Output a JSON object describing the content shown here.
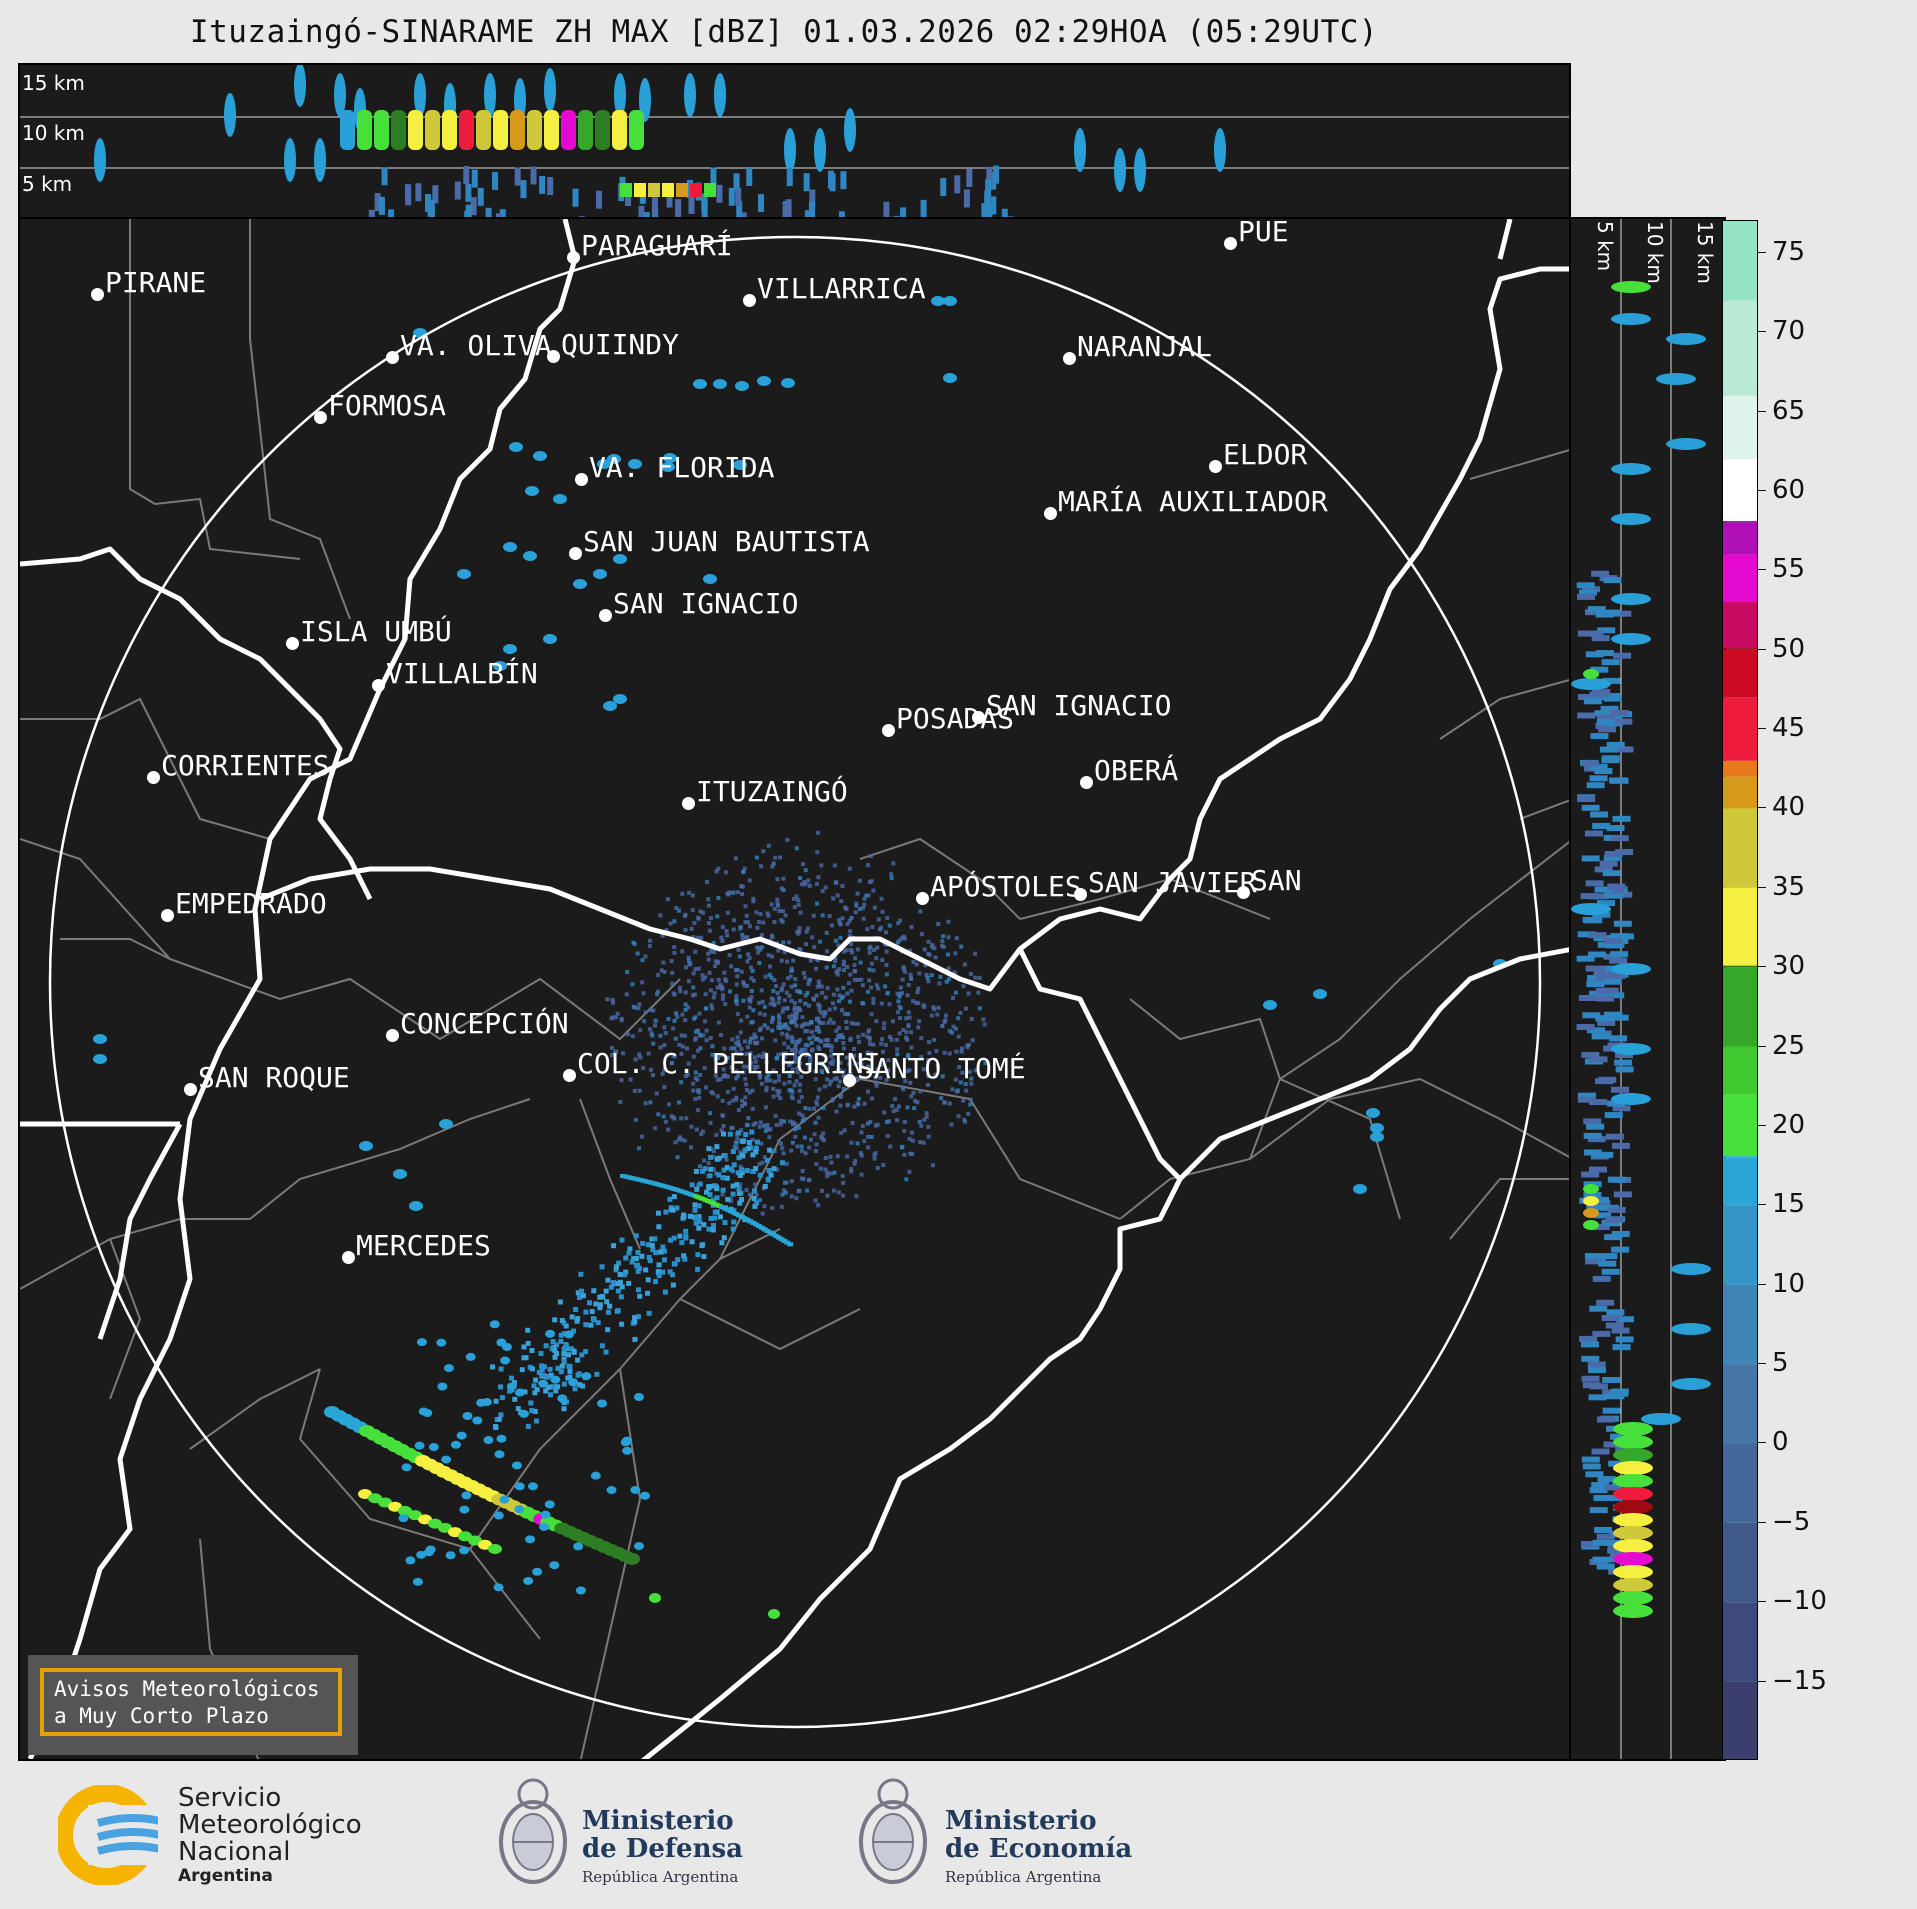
{
  "title": "Ituzaingó-SINARAME ZH MAX [dBZ] 01.03.2026 02:29HOA (05:29UTC)",
  "top_panel": {
    "altitudes": [
      "15 km",
      "10 km",
      "5 km"
    ]
  },
  "side_panel": {
    "altitudes": [
      "5 km",
      "10 km",
      "15 km"
    ]
  },
  "colorbar": {
    "ticks": [
      "75",
      "70",
      "65",
      "60",
      "55",
      "50",
      "45",
      "40",
      "35",
      "30",
      "25",
      "20",
      "15",
      "10",
      "5",
      "0",
      "−5",
      "−10",
      "−15"
    ],
    "range_dbz": [
      -20,
      77
    ]
  },
  "cities": [
    {
      "name": "PIRANE"
    },
    {
      "name": "PARAGUARÍ"
    },
    {
      "name": "VILLARRICA"
    },
    {
      "name": "VA. OLIVA"
    },
    {
      "name": "QUIINDY"
    },
    {
      "name": "NARANJAL"
    },
    {
      "name": "FORMOSA"
    },
    {
      "name": "VA. FLORIDA"
    },
    {
      "name": "ELDOR"
    },
    {
      "name": "MARÍA AUXILIADOR"
    },
    {
      "name": "SAN JUAN BAUTISTA"
    },
    {
      "name": "SAN IGNACIO"
    },
    {
      "name": "ISLA UMBÚ"
    },
    {
      "name": "VILLALBÍN"
    },
    {
      "name": "SAN IGNACIO"
    },
    {
      "name": "POSADAS"
    },
    {
      "name": "CORRIENTES"
    },
    {
      "name": "ITUZAINGÓ"
    },
    {
      "name": "OBERÁ"
    },
    {
      "name": "APÓSTOLES"
    },
    {
      "name": "SAN JAVIER"
    },
    {
      "name": "SAN"
    },
    {
      "name": "EMPEDRADO"
    },
    {
      "name": "CONCEPCIÓN"
    },
    {
      "name": "COL. C. PELLEGRINI"
    },
    {
      "name": "SANTO TOMÉ"
    },
    {
      "name": "SAN ROQUE"
    },
    {
      "name": "MERCEDES"
    },
    {
      "name": "PUE"
    }
  ],
  "warning_box": {
    "line1": "Avisos Meteorológicos",
    "line2": "a Muy Corto Plazo"
  },
  "logos": {
    "smn": {
      "line1": "Servicio",
      "line2": "Meteorológico",
      "line3": "Nacional",
      "line4": "Argentina"
    },
    "defensa": {
      "line1": "Ministerio",
      "line2": "de Defensa",
      "line3": "República Argentina"
    },
    "economia": {
      "line1": "Ministerio",
      "line2": "de Economía",
      "line3": "República Argentina"
    }
  },
  "colors": {
    "panel_bg": "#1b1b1b",
    "border_lines": "#ffffff",
    "admin_lines": "#7a7a7a",
    "echo_low": "#4a6aa8",
    "echo_blue": "#2ea6d8",
    "warn_border": "#e6a200"
  }
}
